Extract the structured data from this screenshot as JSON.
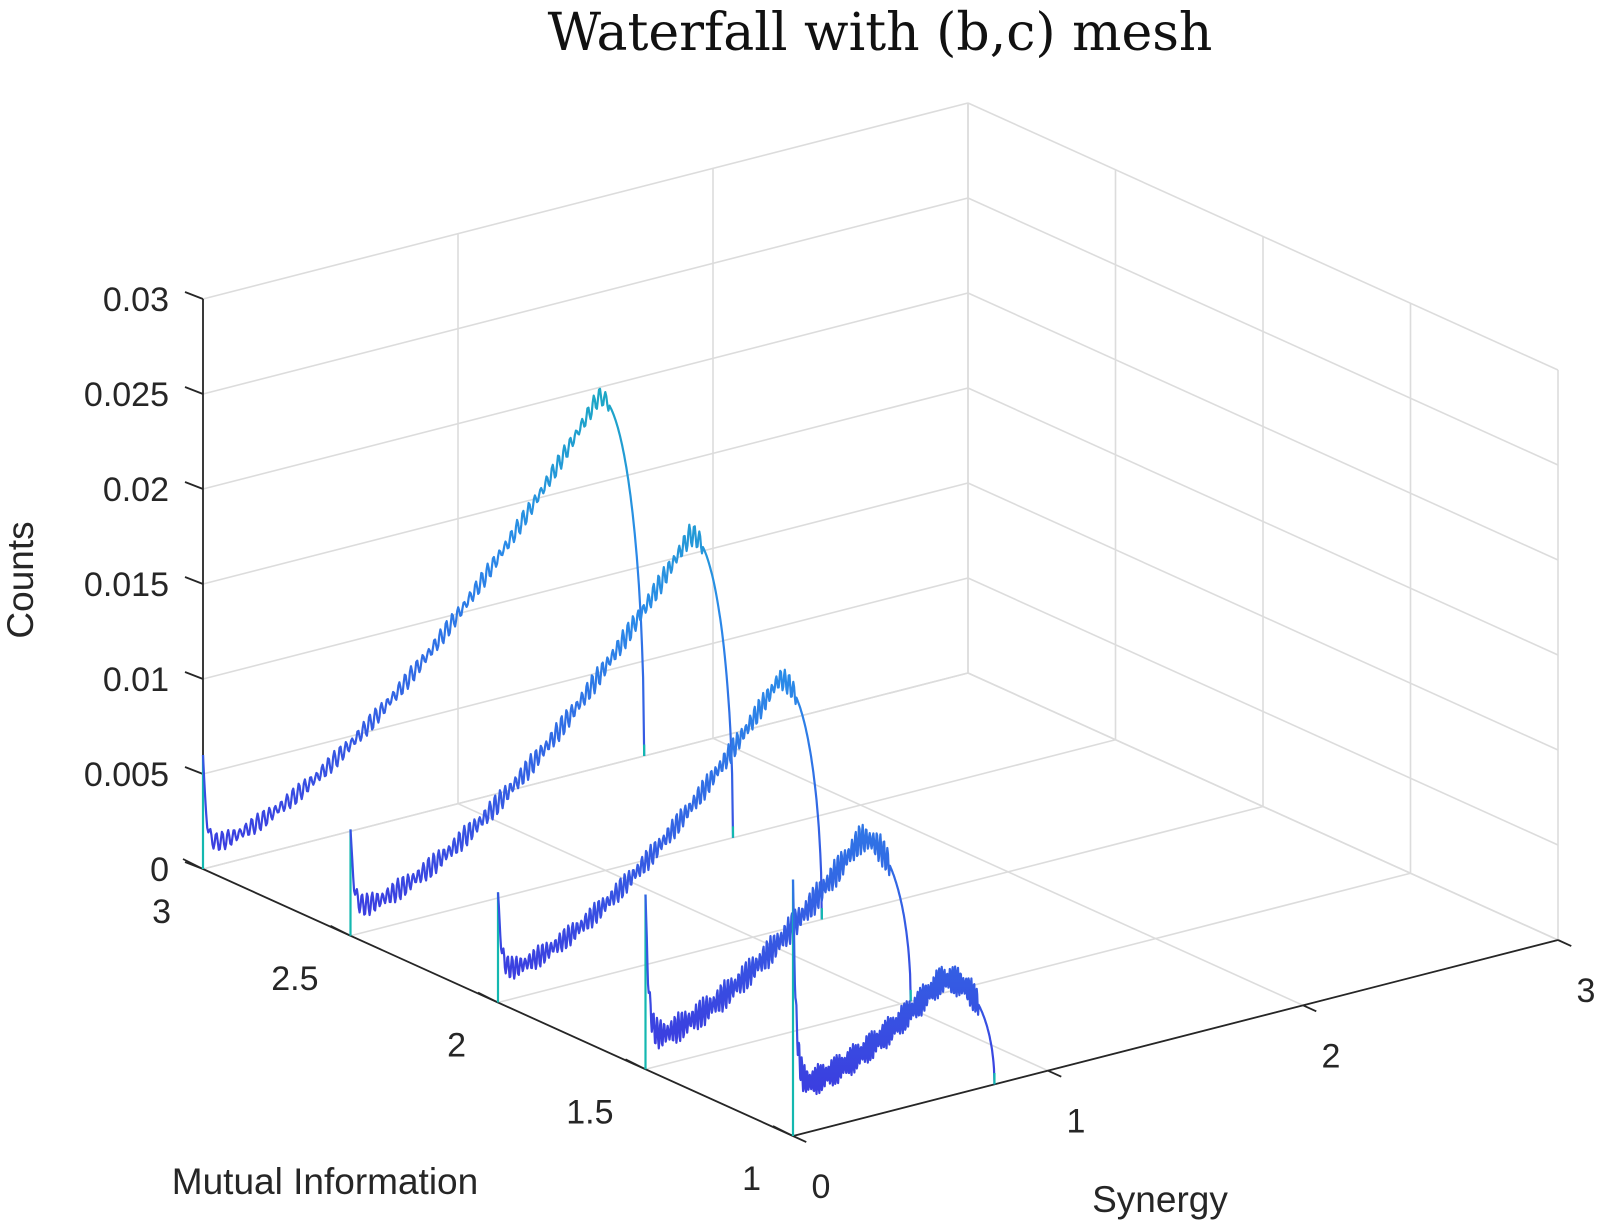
{
  "chart_data": {
    "type": "line",
    "title": "Waterfall with (b,c) mesh",
    "xlabel": "Synergy",
    "ylabel": "Mutual Information",
    "zlabel": "Counts",
    "xlim": [
      0,
      3
    ],
    "ylim": [
      1,
      3
    ],
    "zlim": [
      0,
      0.03
    ],
    "x_ticks": [
      "0",
      "1",
      "2",
      "3"
    ],
    "y_ticks": [
      "1",
      "1.5",
      "2",
      "2.5",
      "3"
    ],
    "z_ticks": [
      "0",
      "0.005",
      "0.01",
      "0.015",
      "0.02",
      "0.025",
      "0.03"
    ],
    "grid": true,
    "colors": {
      "low": "#3b3fe0",
      "mid": "#2a8be8",
      "high": "#14b8b0"
    },
    "series": [
      {
        "mi": 3.0,
        "synergy_max": 1.73,
        "peak_counts": 0.0195,
        "peak_synergy": 1.55,
        "spike_counts": 0.006,
        "trough_counts": 0.0012,
        "noise": 0.0005
      },
      {
        "mi": 2.5,
        "synergy_max": 1.5,
        "peak_counts": 0.0165,
        "peak_synergy": 1.33,
        "spike_counts": 0.0056,
        "trough_counts": 0.0014,
        "noise": 0.0006
      },
      {
        "mi": 2.0,
        "synergy_max": 1.27,
        "peak_counts": 0.0132,
        "peak_synergy": 1.1,
        "spike_counts": 0.0058,
        "trough_counts": 0.0016,
        "noise": 0.0006
      },
      {
        "mi": 1.5,
        "synergy_max": 1.04,
        "peak_counts": 0.0092,
        "peak_synergy": 0.84,
        "spike_counts": 0.0092,
        "trough_counts": 0.0016,
        "noise": 0.0008
      },
      {
        "mi": 1.0,
        "synergy_max": 0.79,
        "peak_counts": 0.0062,
        "peak_synergy": 0.58,
        "spike_counts": 0.0135,
        "trough_counts": 0.0026,
        "noise": 0.0008
      }
    ]
  }
}
